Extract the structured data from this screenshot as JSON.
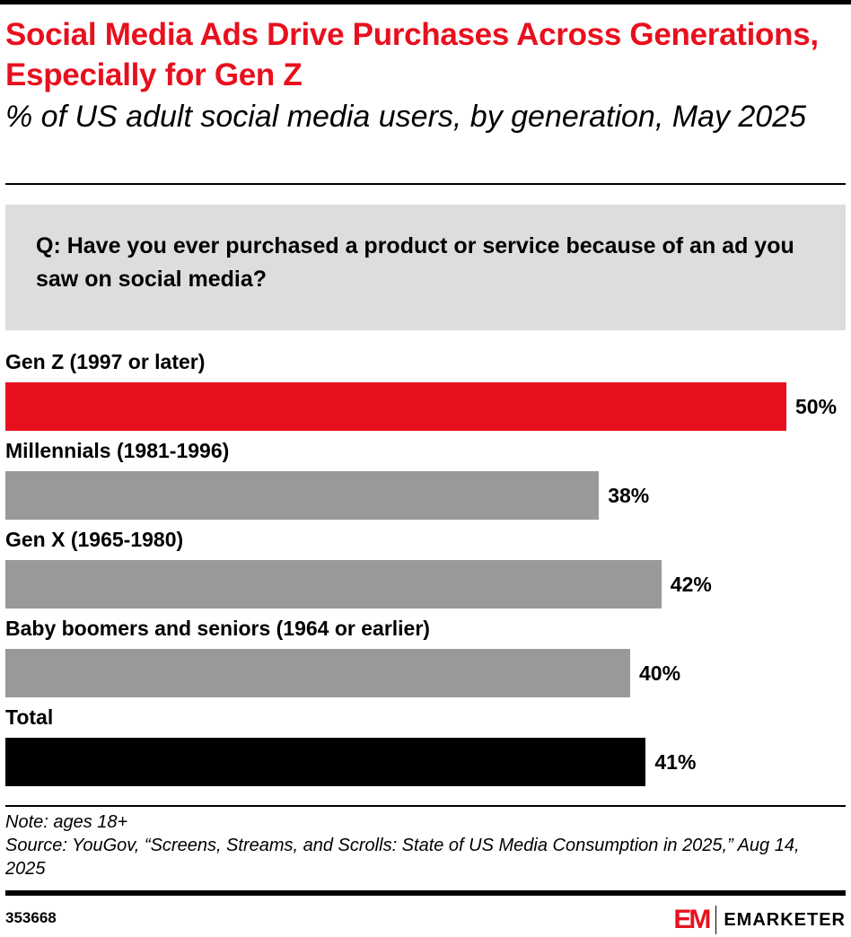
{
  "title": "Social Media Ads Drive Purchases Across Generations, Especially for Gen Z",
  "subtitle": "% of US adult social media users, by generation, May 2025",
  "question": "Q: Have you ever purchased a product or service because of an ad you saw on social media?",
  "note": "Note: ages 18+",
  "source": "Source: YouGov, “Screens, Streams, and Scrolls: State of US Media Consumption in 2025,” Aug 14, 2025",
  "chart_id": "353668",
  "brand": {
    "mark": "EM",
    "name": "EMARKETER"
  },
  "chart_data": {
    "type": "bar",
    "orientation": "horizontal",
    "categories": [
      "Gen Z (1997 or later)",
      "Millennials (1981-1996)",
      "Gen X (1965-1980)",
      "Baby boomers and seniors (1964 or earlier)",
      "Total"
    ],
    "values": [
      50,
      38,
      42,
      40,
      41
    ],
    "value_labels": [
      "50%",
      "38%",
      "42%",
      "40%",
      "41%"
    ],
    "colors": [
      "#e8101e",
      "#999999",
      "#999999",
      "#999999",
      "#000000"
    ],
    "xlim": [
      0,
      50
    ],
    "grid": false
  }
}
